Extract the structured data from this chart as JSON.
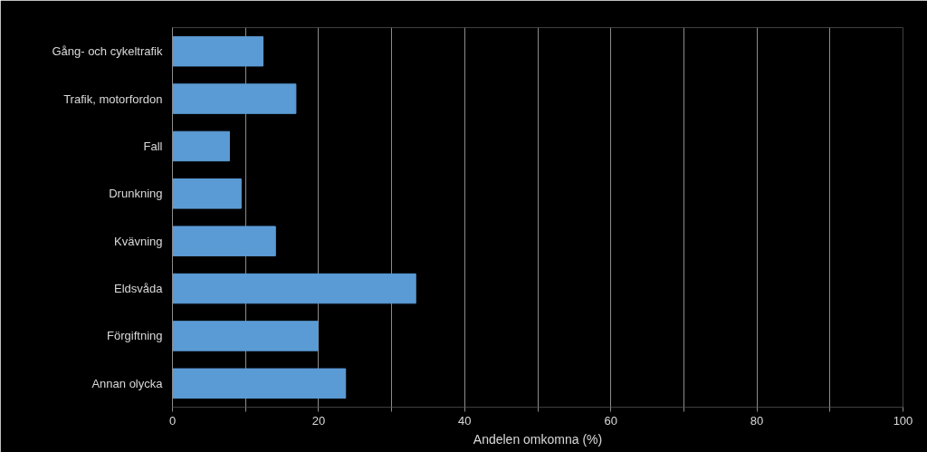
{
  "chart_data": {
    "type": "bar",
    "orientation": "horizontal",
    "xlabel": "Andelen omkomna (%)",
    "categories": [
      "Gång- och cykeltrafik",
      "Trafik, motorfordon",
      "Fall",
      "Drunkning",
      "Kvävning",
      "Eldsvåda",
      "Förgiftning",
      "Annan olycka"
    ],
    "values": [
      12.4,
      16.9,
      7.8,
      9.4,
      14.1,
      33.3,
      19.9,
      23.7
    ],
    "color": "#5b9bd5",
    "xlim": [
      0,
      100
    ],
    "xticks": [
      0,
      {
        "value": 10,
        "label": null
      },
      20,
      {
        "value": 30,
        "label": null
      },
      40,
      {
        "value": 50,
        "label": null
      },
      60,
      {
        "value": 70,
        "label": null
      },
      80,
      {
        "value": 90,
        "label": null
      },
      100
    ],
    "grid": "x"
  }
}
